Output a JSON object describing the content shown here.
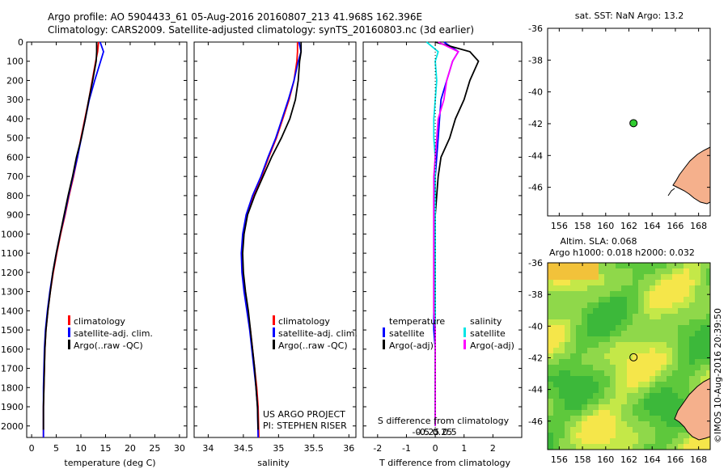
{
  "header": {
    "line1": "Argo profile: AO 5904433_61 05-Aug-2016 20160807_213 41.968S 162.396E",
    "line2": "Climatology: CARS2009. Satellite-adjusted climatology: synTS_20160803.nc (3d earlier)"
  },
  "profile_axis": {
    "ylim": [
      0,
      2060
    ],
    "yticks": [
      0,
      100,
      200,
      300,
      400,
      500,
      600,
      700,
      800,
      900,
      1000,
      1100,
      1200,
      1300,
      1400,
      1500,
      1600,
      1700,
      1800,
      1900,
      2000
    ],
    "ytick_labels": [
      "0",
      "100",
      "200",
      "300",
      "400",
      "500",
      "600",
      "700",
      "800",
      "900",
      "1000",
      "1100",
      "1200",
      "1300",
      "1400",
      "1500",
      "1600",
      "1700",
      "1800",
      "1900",
      "2000"
    ]
  },
  "colors": {
    "climatology": "#ff0000",
    "satellite": "#0000ff",
    "argo": "#000000",
    "s_satellite": "#00e5e5",
    "s_argo": "#ff00ff",
    "dot": "#30cc30",
    "land": "#f5b08c"
  },
  "legend": {
    "climatology": "climatology",
    "satellite_adj": "satellite-adj. clim.",
    "argo_raw": "Argo(..raw -QC)",
    "temperature": "temperature",
    "salinity": "salinity",
    "satellite": "satellite",
    "argo_adj": "Argo(-adj)"
  },
  "annotations": {
    "project": "US ARGO PROJECT",
    "pi": "PI: STEPHEN RISER",
    "s_diff_title": "S difference from climatology",
    "imos": "©IMOS 10-Aug-2016 20:39:50"
  },
  "chart_data": [
    {
      "type": "line",
      "id": "temperature",
      "xlabel": "temperature (deg C)",
      "xlim": [
        -1,
        31.5
      ],
      "xticks": [
        0,
        5,
        10,
        15,
        20,
        25,
        30
      ],
      "xtick_labels": [
        "0",
        "5",
        "10",
        "15",
        "20",
        "25",
        "30"
      ],
      "ylim": [
        0,
        2060
      ],
      "y_inverted": true,
      "series": [
        {
          "name": "climatology",
          "color": "#ff0000",
          "x": [
            13.6,
            13.4,
            13.0,
            12.3,
            11.6,
            10.8,
            10.0,
            9.3,
            8.5,
            7.6,
            6.8,
            5.9,
            5.1,
            4.4,
            3.8,
            3.3,
            2.9,
            2.7,
            2.6,
            2.5,
            2.4,
            2.4
          ],
          "y": [
            0,
            50,
            100,
            200,
            300,
            400,
            500,
            600,
            700,
            800,
            900,
            1000,
            1100,
            1200,
            1300,
            1400,
            1500,
            1600,
            1700,
            1800,
            1900,
            2060
          ]
        },
        {
          "name": "satellite-adj. clim.",
          "color": "#0000ff",
          "x": [
            13.9,
            14.6,
            14.0,
            12.8,
            11.7,
            10.9,
            10.1,
            9.3,
            8.4,
            7.5,
            6.7,
            5.8,
            5.0,
            4.3,
            3.7,
            3.2,
            2.8,
            2.6,
            2.5,
            2.4,
            2.4,
            2.4
          ],
          "y": [
            0,
            50,
            100,
            200,
            300,
            400,
            500,
            600,
            700,
            800,
            900,
            1000,
            1100,
            1200,
            1300,
            1400,
            1500,
            1600,
            1700,
            1800,
            1900,
            2060
          ]
        },
        {
          "name": "Argo(..raw -QC)",
          "color": "#000000",
          "x": [
            13.2,
            13.2,
            13.1,
            12.4,
            11.6,
            10.9,
            10.1,
            9.1,
            8.3,
            7.4,
            6.6,
            5.8,
            5.0,
            4.3,
            3.8,
            3.3,
            2.9,
            2.7,
            2.6,
            2.5,
            2.4,
            2.4
          ],
          "y": [
            0,
            50,
            100,
            200,
            300,
            400,
            500,
            600,
            700,
            800,
            900,
            1000,
            1100,
            1200,
            1300,
            1400,
            1500,
            1600,
            1700,
            1800,
            1900,
            2020
          ]
        }
      ]
    },
    {
      "type": "line",
      "id": "salinity",
      "xlabel": "salinity",
      "xlim": [
        33.8,
        36.1
      ],
      "xticks": [
        34,
        34.5,
        35,
        35.5,
        36
      ],
      "xtick_labels": [
        "34",
        "34.5",
        "35",
        "35.5",
        "36"
      ],
      "ylim": [
        0,
        2060
      ],
      "y_inverted": true,
      "series": [
        {
          "name": "climatology",
          "color": "#ff0000",
          "x": [
            35.27,
            35.27,
            35.26,
            35.22,
            35.15,
            35.06,
            34.97,
            34.86,
            34.76,
            34.64,
            34.55,
            34.5,
            34.48,
            34.49,
            34.52,
            34.56,
            34.6,
            34.63,
            34.66,
            34.69,
            34.71,
            34.72
          ],
          "y": [
            0,
            50,
            100,
            200,
            300,
            400,
            500,
            600,
            700,
            800,
            900,
            1000,
            1100,
            1200,
            1300,
            1400,
            1500,
            1600,
            1700,
            1800,
            1900,
            2060
          ]
        },
        {
          "name": "satellite-adj. clim.",
          "color": "#0000ff",
          "x": [
            35.29,
            35.32,
            35.28,
            35.22,
            35.14,
            35.05,
            34.96,
            34.85,
            34.75,
            34.63,
            34.54,
            34.49,
            34.47,
            34.48,
            34.51,
            34.55,
            34.59,
            34.62,
            34.65,
            34.68,
            34.7,
            34.71
          ],
          "y": [
            0,
            50,
            100,
            200,
            300,
            400,
            500,
            600,
            700,
            800,
            900,
            1000,
            1100,
            1200,
            1300,
            1400,
            1500,
            1600,
            1700,
            1800,
            1900,
            2060
          ]
        },
        {
          "name": "Argo(..raw -QC)",
          "color": "#000000",
          "x": [
            35.32,
            35.32,
            35.3,
            35.28,
            35.24,
            35.16,
            35.04,
            34.9,
            34.78,
            34.66,
            34.56,
            34.51,
            34.49,
            34.5,
            34.53,
            34.57,
            34.6,
            34.63,
            34.66,
            34.68,
            34.7,
            34.71
          ],
          "y": [
            0,
            50,
            100,
            200,
            300,
            400,
            500,
            600,
            700,
            800,
            900,
            1000,
            1100,
            1200,
            1300,
            1400,
            1500,
            1600,
            1700,
            1800,
            1900,
            2020
          ]
        }
      ]
    },
    {
      "type": "line",
      "id": "difference",
      "xlabel": "T difference from climatology",
      "xlim": [
        -2.5,
        3
      ],
      "xticks": [
        -2,
        -1,
        0,
        1,
        2
      ],
      "xtick_labels": [
        "-2",
        "-1",
        "0",
        "1",
        "2"
      ],
      "top_xlabel": "S difference from climatology",
      "top_xticks": [
        -0.5,
        -0.25,
        0,
        0.25,
        0.5
      ],
      "top_xtick_labels": [
        "-0.5",
        "-0.25",
        "0",
        "0.25",
        "0.5"
      ],
      "ylim": [
        0,
        2060
      ],
      "y_inverted": true,
      "series": [
        {
          "name": "temperature satellite",
          "color": "#0000ff",
          "x": [
            0.3,
            0.8,
            0.6,
            0.4,
            0.2,
            0.15,
            0.1,
            0.05,
            0.0,
            -0.05,
            -0.05,
            -0.05,
            -0.05,
            -0.05,
            -0.05,
            -0.05,
            -0.05,
            0.0,
            0.0,
            0.0,
            0.0
          ],
          "y": [
            0,
            50,
            100,
            200,
            300,
            400,
            500,
            600,
            700,
            800,
            900,
            1000,
            1100,
            1200,
            1300,
            1400,
            1500,
            1600,
            1700,
            1800,
            2000
          ]
        },
        {
          "name": "temperature Argo(-adj)",
          "color": "#000000",
          "x": [
            0.0,
            1.2,
            1.5,
            1.2,
            1.0,
            0.7,
            0.5,
            0.2,
            0.1,
            0.05,
            0.0,
            0.0,
            0.0,
            0.0,
            0.0,
            0.0,
            0.0,
            0.0,
            0.0,
            0.0,
            0.0
          ],
          "y": [
            0,
            50,
            100,
            200,
            300,
            400,
            500,
            600,
            700,
            800,
            900,
            1000,
            1100,
            1200,
            1300,
            1400,
            1500,
            1600,
            1700,
            1800,
            2000
          ]
        },
        {
          "name": "salinity satellite",
          "color": "#00e5e5",
          "x": [
            -0.3,
            0.1,
            0.0,
            0.05,
            0.0,
            -0.05,
            -0.05,
            0.0,
            0.0,
            0.0,
            0.0,
            0.0,
            0.0,
            0.0,
            0.0,
            0.0,
            0.0,
            0.0,
            0.0,
            0.0,
            0.0
          ],
          "y": [
            0,
            50,
            100,
            200,
            300,
            400,
            500,
            600,
            700,
            800,
            900,
            1000,
            1100,
            1200,
            1300,
            1400,
            1500,
            1600,
            1700,
            1800,
            2000
          ]
        },
        {
          "name": "salinity Argo(-adj)",
          "color": "#ff00ff",
          "x": [
            0.1,
            0.8,
            0.6,
            0.4,
            0.3,
            0.1,
            0.05,
            0.0,
            -0.05,
            -0.05,
            -0.05,
            -0.05,
            -0.05,
            -0.05,
            -0.05,
            -0.05,
            0.0,
            0.0,
            0.0,
            0.0,
            0.0
          ],
          "y": [
            0,
            50,
            100,
            200,
            300,
            400,
            500,
            600,
            700,
            800,
            900,
            1000,
            1100,
            1200,
            1300,
            1400,
            1500,
            1600,
            1700,
            1800,
            2000
          ]
        }
      ]
    },
    {
      "type": "scatter",
      "id": "sst_map",
      "title": "sat. SST: NaN Argo: 13.2",
      "xlim": [
        155,
        169
      ],
      "ylim": [
        -47.8,
        -36
      ],
      "xticks": [
        156,
        158,
        160,
        162,
        164,
        166,
        168
      ],
      "xtick_labels": [
        "156",
        "158",
        "160",
        "162",
        "164",
        "166",
        "168"
      ],
      "yticks": [
        -36,
        -38,
        -40,
        -42,
        -44,
        -46
      ],
      "ytick_labels": [
        "-36",
        "-38",
        "-40",
        "-42",
        "-44",
        "-46"
      ],
      "points": [
        {
          "lon": 162.396,
          "lat": -41.968
        }
      ]
    },
    {
      "type": "heatmap",
      "id": "sla_map",
      "title_line1": "Altim. SLA: 0.068",
      "title_line2": "Argo h1000: 0.018 h2000: 0.032",
      "xlim": [
        155,
        169
      ],
      "ylim": [
        -47.8,
        -36
      ],
      "xticks": [
        156,
        158,
        160,
        162,
        164,
        166,
        168
      ],
      "xtick_labels": [
        "156",
        "158",
        "160",
        "162",
        "164",
        "166",
        "168"
      ],
      "yticks": [
        -36,
        -38,
        -40,
        -42,
        -44,
        -46
      ],
      "ytick_labels": [
        "-36",
        "-38",
        "-40",
        "-42",
        "-44",
        "-46"
      ],
      "points": [
        {
          "lon": 162.396,
          "lat": -41.968
        }
      ]
    }
  ]
}
